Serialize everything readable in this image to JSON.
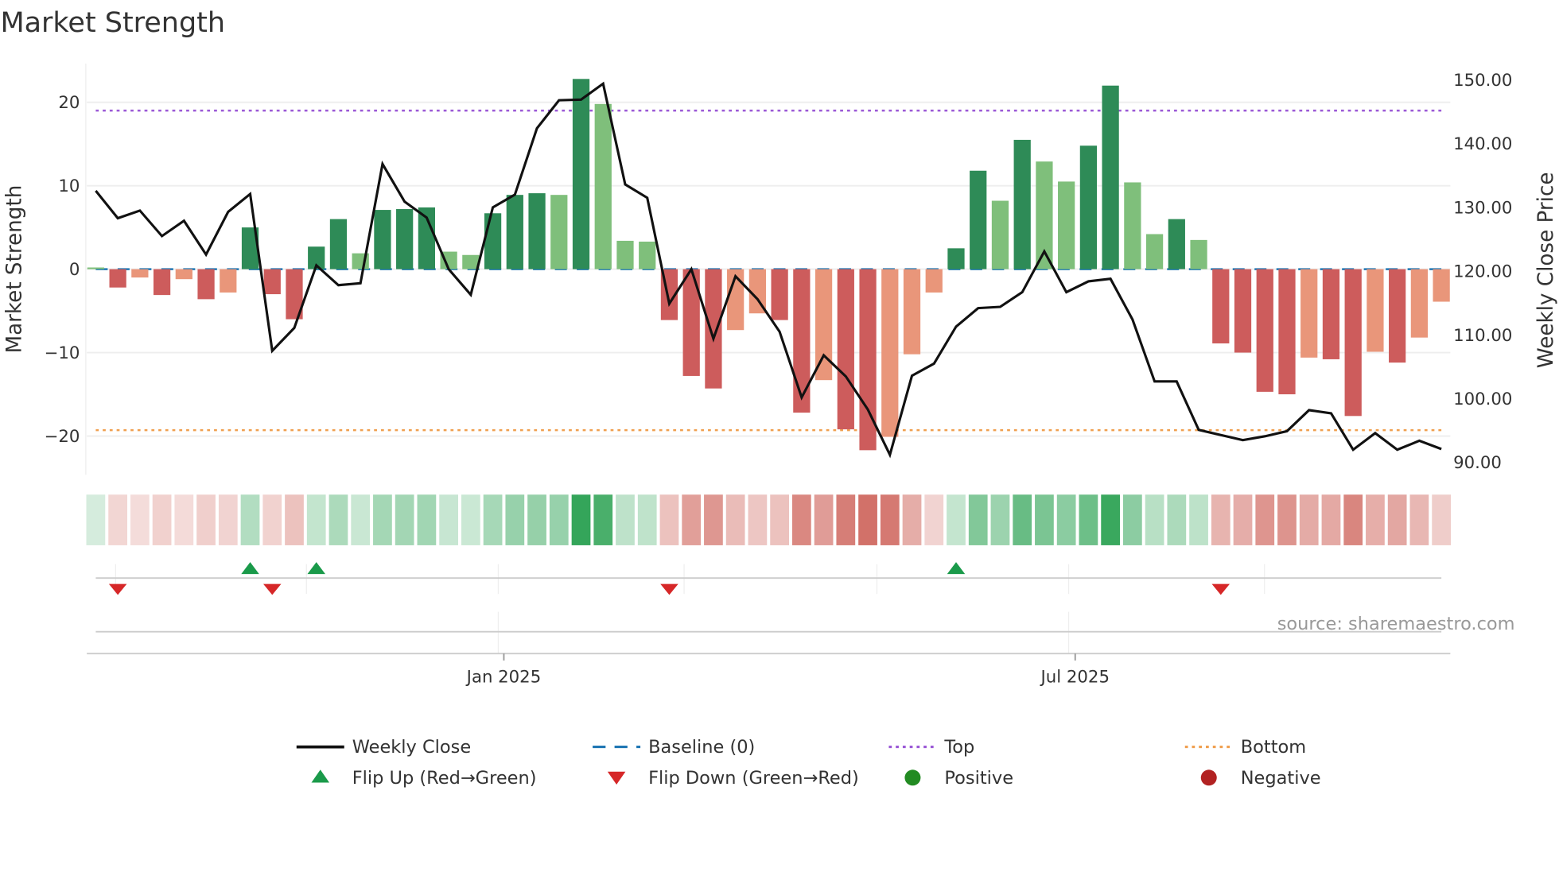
{
  "chart_data": {
    "type": "bar",
    "title": "Market Strength",
    "ylabel": "Market Strength",
    "y2label": "Weekly Close Price",
    "ylim": [
      -25,
      25
    ],
    "y2lim": [
      88,
      153
    ],
    "yticks": [
      "20",
      "10",
      "0",
      "−10",
      "−20"
    ],
    "ytick_values": [
      20,
      10,
      0,
      -10,
      -20
    ],
    "y2ticks": [
      "150.00",
      "140.00",
      "130.00",
      "120.00",
      "110.00",
      "100.00",
      "90.00"
    ],
    "y2tick_values": [
      150,
      140,
      130,
      120,
      110,
      100,
      90
    ],
    "xticks": [
      "Jan 2025",
      "Jul 2025"
    ],
    "xtick_week_index": [
      18.5,
      44.4
    ],
    "top_level": 19,
    "bottom_level": -19.3,
    "baseline": 0,
    "strength": [
      0.2,
      -2.2,
      -1,
      -3.1,
      -1.2,
      -3.6,
      -2.8,
      5,
      -3,
      -6,
      2.7,
      6,
      1.9,
      7.1,
      7.2,
      7.4,
      2.1,
      1.7,
      6.7,
      8.9,
      9.1,
      8.9,
      22.8,
      19.8,
      3.4,
      3.3,
      -6.1,
      -12.8,
      -14.3,
      -7.3,
      -5.3,
      -6.1,
      -17.2,
      -13.3,
      -19.2,
      -21.7,
      -20.1,
      -10.2,
      -2.8,
      2.5,
      11.8,
      8.2,
      15.5,
      12.9,
      10.5,
      14.8,
      22,
      10.4,
      4.2,
      6,
      3.5,
      -8.9,
      -10,
      -14.7,
      -15,
      -10.6,
      -10.8,
      -17.6,
      -9.9,
      -11.2,
      -8.2,
      -3.9
    ],
    "strength_shade": [
      "l",
      "d",
      "l",
      "d",
      "l",
      "d",
      "l",
      "d",
      "d",
      "d",
      "d",
      "d",
      "l",
      "d",
      "d",
      "d",
      "l",
      "l",
      "d",
      "d",
      "d",
      "l",
      "d",
      "l",
      "l",
      "l",
      "d",
      "d",
      "d",
      "l",
      "l",
      "d",
      "d",
      "l",
      "d",
      "d",
      "l",
      "l",
      "l",
      "d",
      "d",
      "l",
      "d",
      "l",
      "l",
      "d",
      "d",
      "l",
      "l",
      "d",
      "l",
      "d",
      "d",
      "d",
      "d",
      "l",
      "d",
      "d",
      "l",
      "d",
      "l",
      "l"
    ],
    "weekly_close": [
      132.6,
      128.3,
      129.5,
      125.5,
      127.9,
      122.6,
      129.3,
      132.1,
      107.5,
      111.1,
      120.9,
      117.8,
      118.1,
      136.8,
      130.9,
      128.4,
      120.3,
      116.3,
      130.0,
      132.0,
      142.4,
      146.8,
      146.9,
      149.4,
      133.6,
      131.5,
      114.9,
      120.3,
      109.4,
      119.2,
      115.6,
      110.5,
      100.2,
      106.8,
      103.5,
      98.3,
      91.2,
      103.6,
      105.5,
      111.3,
      114.2,
      114.4,
      116.7,
      123.1,
      116.7,
      118.4,
      118.8,
      112.4,
      102.7,
      102.7,
      95.1,
      94.3,
      93.5,
      94.1,
      94.9,
      98.2,
      97.7,
      92.0,
      94.6,
      92.0,
      93.4,
      92.1
    ],
    "flip_up_weeks": [
      7,
      10,
      39
    ],
    "flip_down_weeks": [
      1,
      8,
      26,
      51
    ],
    "legend": {
      "placement": "bottom",
      "items": [
        {
          "label": "Weekly Close",
          "type": "line"
        },
        {
          "label": "Baseline (0)",
          "type": "dash"
        },
        {
          "label": "Top",
          "type": "dot-top"
        },
        {
          "label": "Bottom",
          "type": "dot-bottom"
        },
        {
          "label": "Flip Up (Red→Green)",
          "type": "tri-up"
        },
        {
          "label": "Flip Down (Green→Red)",
          "type": "tri-down"
        },
        {
          "label": "Positive",
          "type": "circle-pos"
        },
        {
          "label": "Negative",
          "type": "circle-neg"
        }
      ]
    },
    "source": "source: sharemaestro.com"
  },
  "colors": {
    "green_dark": "#2e8b57",
    "green_light": "#7fbf7b",
    "red_dark": "#cd5c5c",
    "red_light": "#e9967a",
    "line": "#111111",
    "baseline": "#1f77b4",
    "top": "#9b59d6",
    "bottom": "#f0a050",
    "flip_up": "#1a9a4a",
    "flip_down": "#d62728",
    "positive": "#228b22",
    "negative": "#b22222"
  }
}
